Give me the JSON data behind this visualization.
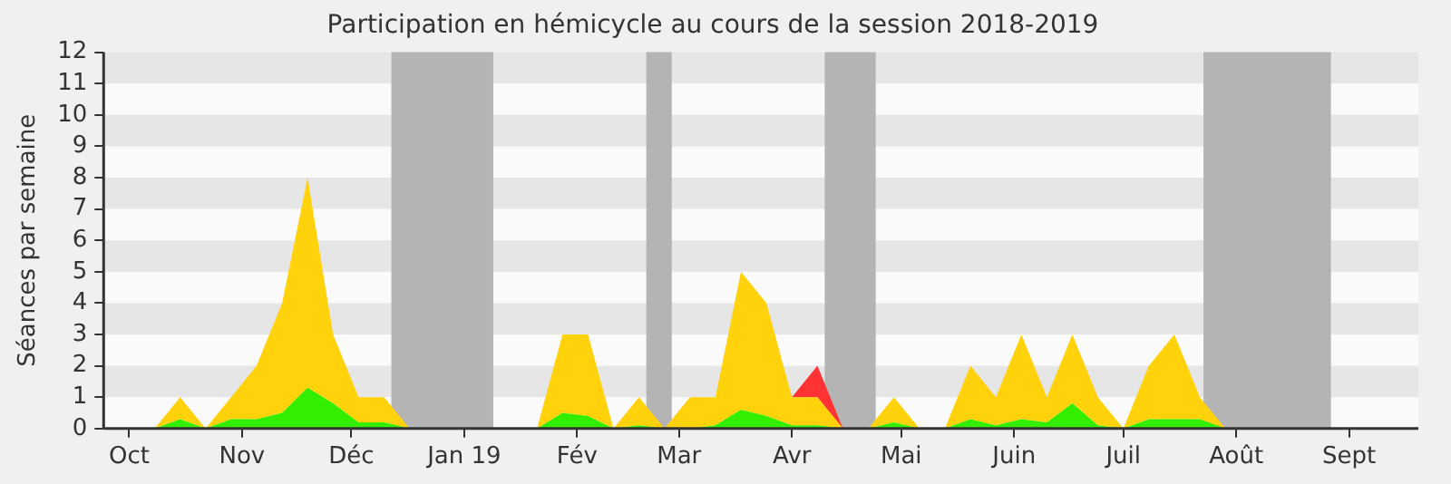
{
  "chart_data": {
    "type": "area",
    "title": "Participation en hémicycle au cours de la session 2018-2019",
    "ylabel": "Séances par semaine",
    "stacked": true,
    "x": [
      "2018-09-24",
      "2018-10-01",
      "2018-10-08",
      "2018-10-15",
      "2018-10-22",
      "2018-10-29",
      "2018-11-05",
      "2018-11-12",
      "2018-11-19",
      "2018-11-26",
      "2018-12-03",
      "2018-12-10",
      "2018-12-17",
      "2018-12-24",
      "2018-12-31",
      "2019-01-07",
      "2019-01-14",
      "2019-01-21",
      "2019-01-28",
      "2019-02-04",
      "2019-02-11",
      "2019-02-18",
      "2019-02-25",
      "2019-03-04",
      "2019-03-11",
      "2019-03-18",
      "2019-03-25",
      "2019-04-01",
      "2019-04-08",
      "2019-04-15",
      "2019-04-22",
      "2019-04-29",
      "2019-05-06",
      "2019-05-13",
      "2019-05-20",
      "2019-05-27",
      "2019-06-03",
      "2019-06-10",
      "2019-06-17",
      "2019-06-24",
      "2019-07-01",
      "2019-07-08",
      "2019-07-15",
      "2019-07-22",
      "2019-07-29",
      "2019-08-05",
      "2019-08-12",
      "2019-08-19",
      "2019-08-26",
      "2019-09-02",
      "2019-09-09",
      "2019-09-16"
    ],
    "series": [
      {
        "color": "#33ee00",
        "values": [
          0,
          0,
          0,
          0.3,
          0,
          0.3,
          0.3,
          0.5,
          1.3,
          0.8,
          0.2,
          0.2,
          0,
          0,
          0,
          0,
          0,
          0,
          0.5,
          0.4,
          0,
          0.1,
          0,
          0,
          0.1,
          0.6,
          0.4,
          0.1,
          0.1,
          0,
          0,
          0.2,
          0,
          0,
          0.3,
          0.1,
          0.3,
          0.2,
          0.8,
          0.1,
          0,
          0.3,
          0.3,
          0.3,
          0,
          0,
          0,
          0,
          0,
          0,
          0,
          0
        ]
      },
      {
        "color": "#ffd20c",
        "values": [
          0,
          0,
          0,
          0.7,
          0,
          0.7,
          1.7,
          3.5,
          6.7,
          2.2,
          0.8,
          0.8,
          0,
          0,
          0,
          0,
          0,
          0,
          2.5,
          2.6,
          0,
          0.9,
          0,
          1,
          0.9,
          4.4,
          3.6,
          0.9,
          0.9,
          0,
          0,
          0.8,
          0,
          0,
          1.7,
          0.9,
          2.7,
          0.8,
          2.2,
          0.9,
          0,
          1.7,
          2.7,
          0.7,
          0,
          0,
          0,
          0,
          0,
          0,
          0,
          0
        ]
      },
      {
        "color": "#ff3333",
        "values": [
          null,
          null,
          null,
          null,
          null,
          null,
          null,
          null,
          null,
          null,
          null,
          null,
          null,
          null,
          null,
          null,
          null,
          null,
          null,
          null,
          null,
          null,
          null,
          null,
          null,
          null,
          null,
          0,
          1,
          0,
          null,
          null,
          null,
          null,
          null,
          null,
          null,
          null,
          null,
          null,
          null,
          null,
          null,
          null,
          null,
          null,
          null,
          null,
          null,
          null,
          null,
          null
        ]
      }
    ],
    "xlim": [
      "2018-09-24",
      "2019-09-20"
    ],
    "xticks": [
      {
        "value": "2018-10-01",
        "label": "Oct"
      },
      {
        "value": "2018-11-01",
        "label": "Nov"
      },
      {
        "value": "2018-12-01",
        "label": "Déc"
      },
      {
        "value": "2019-01-01",
        "label": "Jan 19"
      },
      {
        "value": "2019-02-01",
        "label": "Fév"
      },
      {
        "value": "2019-03-01",
        "label": "Mar"
      },
      {
        "value": "2019-04-01",
        "label": "Avr"
      },
      {
        "value": "2019-05-01",
        "label": "Mai"
      },
      {
        "value": "2019-06-01",
        "label": "Juin"
      },
      {
        "value": "2019-07-01",
        "label": "Juil"
      },
      {
        "value": "2019-08-01",
        "label": "Août"
      },
      {
        "value": "2019-09-01",
        "label": "Sept"
      }
    ],
    "ylim": [
      0,
      12
    ],
    "yticks": [
      0,
      1,
      2,
      3,
      4,
      5,
      6,
      7,
      8,
      9,
      10,
      11,
      12
    ],
    "bands": [
      {
        "axis": "y",
        "from": 1,
        "to": 2,
        "color": "#e6e6e6"
      },
      {
        "axis": "y",
        "from": 3,
        "to": 4,
        "color": "#e6e6e6"
      },
      {
        "axis": "y",
        "from": 5,
        "to": 6,
        "color": "#e6e6e6"
      },
      {
        "axis": "y",
        "from": 7,
        "to": 8,
        "color": "#e6e6e6"
      },
      {
        "axis": "y",
        "from": 9,
        "to": 10,
        "color": "#e6e6e6"
      },
      {
        "axis": "y",
        "from": 11,
        "to": 12,
        "color": "#e6e6e6"
      },
      {
        "axis": "x",
        "from": "2018-12-12",
        "to": "2019-01-09",
        "color": "#b4b4b4"
      },
      {
        "axis": "x",
        "from": "2019-02-20",
        "to": "2019-02-27",
        "color": "#b4b4b4"
      },
      {
        "axis": "x",
        "from": "2019-04-10",
        "to": "2019-04-24",
        "color": "#b4b4b4"
      },
      {
        "axis": "x",
        "from": "2019-07-23",
        "to": "2019-08-27",
        "color": "#b4b4b4"
      }
    ]
  }
}
